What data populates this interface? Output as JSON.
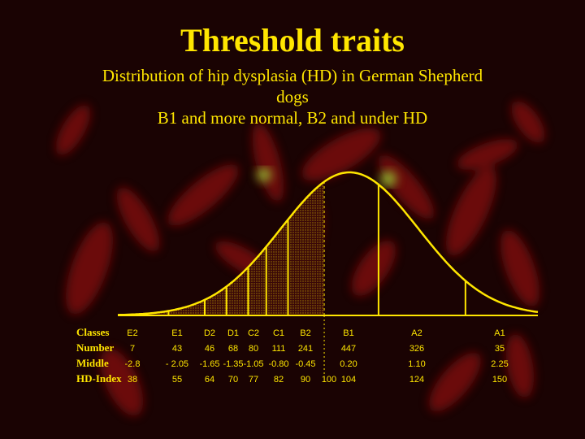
{
  "title": "Threshold traits",
  "subtitle": [
    "Distribution of hip dysplasia (HD) in German Shepherd",
    "dogs",
    "B1 and more normal, B2 and under HD"
  ],
  "colors": {
    "text": "#ffe600",
    "curve": "#ffe600",
    "background": "#1a0303",
    "blobs": "#8a0a0a"
  },
  "chart_data": {
    "type": "area",
    "title": "Threshold traits",
    "row_labels": [
      "Classes",
      "Number",
      "Middle",
      "HD-Index"
    ],
    "classes": [
      "E2",
      "E1",
      "D2",
      "D1",
      "C2",
      "C1",
      "B2",
      "B1",
      "A2",
      "A1"
    ],
    "number": [
      "7",
      "43",
      "46",
      "68",
      "80",
      "111",
      "241",
      "447",
      "326",
      "35"
    ],
    "middle": [
      "-2.8",
      "- 2.05",
      "-1.65",
      "-1.35",
      "-1.05",
      "-0.80",
      "-0.45",
      "0.20",
      "1.10",
      "2.25"
    ],
    "hd_index": [
      "38",
      "55",
      "64",
      "70",
      "77",
      "82",
      "90",
      "104",
      "124",
      "150"
    ],
    "threshold_value": "100",
    "curve": {
      "mean": 0.2,
      "sd": 0.95
    },
    "x_range": [
      -3.0,
      2.8
    ],
    "boundaries": [
      -3.0,
      -2.3,
      -1.8,
      -1.5,
      -1.2,
      -0.95,
      -0.65,
      -0.15,
      0.6,
      1.8
    ],
    "threshold_x": -0.15,
    "shaded_region": "below threshold (HD)"
  }
}
